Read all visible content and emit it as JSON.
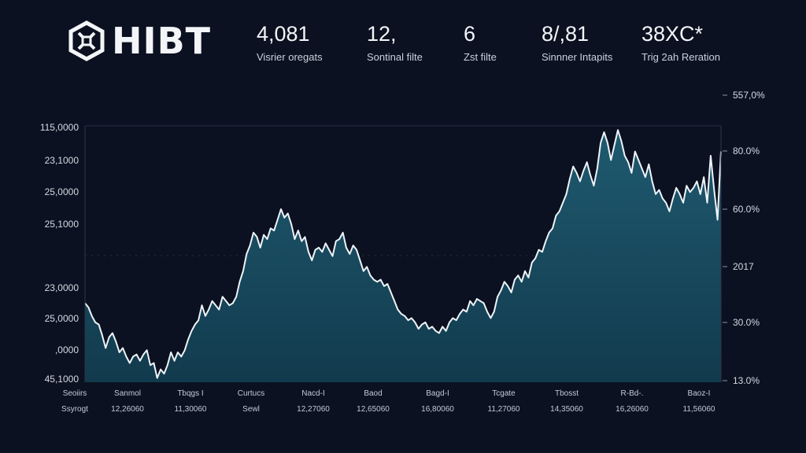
{
  "header": {
    "logo_text": "HIBT",
    "stats": [
      {
        "value": "4,081",
        "label": "Visrier oregats"
      },
      {
        "value": "12,",
        "label": "Sontinal filte"
      },
      {
        "value": "6",
        "label": "Zst filte"
      },
      {
        "value": "8/,81",
        "label": "Sinnner Intapits"
      },
      {
        "value": "38XC*",
        "label": "Trig 2ah Reration"
      }
    ]
  },
  "chart_data": {
    "type": "area",
    "y_ticks_left": [
      "115,0000",
      "23,1000",
      "25,0000",
      "25,1000",
      "23,0000",
      "25,0000",
      ",0000",
      "45,1000"
    ],
    "y_ticks_right": [
      "557,0%",
      "80.0%",
      "60.0%",
      "2017",
      "30.0%",
      "13.0%"
    ],
    "x_labels_top": [
      "Seoiirs",
      "Sanmol",
      "Tbqgs I",
      "Curtucs",
      "Nacd-I",
      "Baod",
      "Bagd-I",
      "Tcgate",
      "Tbosst",
      "R-Bd-.",
      "Baoz-I"
    ],
    "x_labels_bottom": [
      "Ssyrogt",
      "12,26060",
      "11,30060",
      "Sewl",
      "12,27060",
      "12,65060",
      "16,80060",
      "11,27060",
      "14,35060",
      "16,26060",
      "11,56060"
    ],
    "y": [
      37,
      35,
      31,
      28,
      27,
      22,
      16,
      21,
      23,
      19,
      14,
      16,
      12,
      9,
      12,
      13,
      10,
      13,
      15,
      8,
      9,
      2,
      6,
      4,
      8,
      14,
      10,
      14,
      12,
      15,
      20,
      24,
      27,
      29,
      36,
      31,
      34,
      38,
      36,
      34,
      40,
      38,
      36,
      37,
      40,
      47,
      52,
      60,
      64,
      70,
      68,
      63,
      69,
      67,
      72,
      71,
      76,
      81,
      77,
      79,
      74,
      67,
      71,
      66,
      68,
      61,
      57,
      62,
      63,
      61,
      65,
      62,
      59,
      66,
      67,
      70,
      63,
      60,
      64,
      62,
      57,
      52,
      54,
      50,
      48,
      47,
      48,
      45,
      46,
      42,
      38,
      34,
      32,
      31,
      29,
      30,
      28,
      25,
      27,
      28,
      25,
      26,
      24,
      23,
      26,
      24,
      28,
      30,
      29,
      32,
      34,
      33,
      38,
      36,
      39,
      38,
      37,
      33,
      30,
      33,
      40,
      43,
      47,
      45,
      42,
      48,
      50,
      47,
      52,
      49,
      56,
      58,
      62,
      61,
      66,
      70,
      72,
      78,
      80,
      84,
      88,
      95,
      101,
      98,
      94,
      99,
      103,
      97,
      92,
      100,
      112,
      117,
      112,
      104,
      111,
      118,
      113,
      106,
      103,
      98,
      108,
      104,
      100,
      96,
      102,
      94,
      88,
      90,
      86,
      84,
      80,
      86,
      91,
      88,
      84,
      92,
      89,
      91,
      94,
      88,
      96,
      84,
      106,
      90,
      76,
      108
    ],
    "ylim": [
      0,
      120
    ],
    "grid": true,
    "line_color": "#eef4f8",
    "fill_top_color": "#1f5a70",
    "fill_bottom_color": "#123a4d"
  }
}
